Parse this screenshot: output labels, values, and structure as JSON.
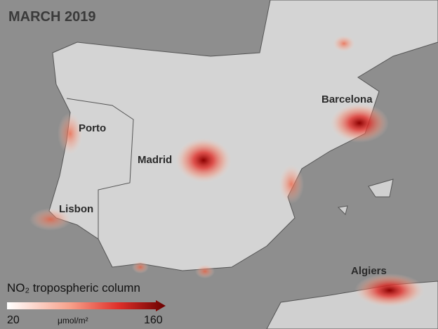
{
  "title": "MARCH 2019",
  "cities": [
    {
      "label": "Porto"
    },
    {
      "label": "Madrid"
    },
    {
      "label": "Barcelona"
    },
    {
      "label": "Lisbon"
    },
    {
      "label": "Algiers"
    }
  ],
  "legend": {
    "title": "NO₂ tropospheric column",
    "min": 20,
    "max": 160,
    "unit": "μmol/m²"
  }
}
